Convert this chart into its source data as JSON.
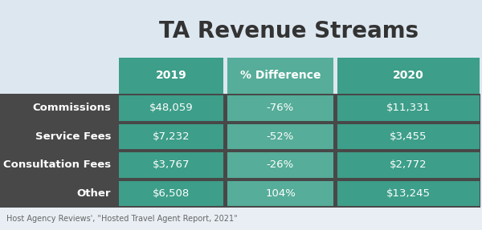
{
  "title": "TA Revenue Streams",
  "col_headers": [
    "2019",
    "% Difference",
    "2020"
  ],
  "row_labels": [
    "Commissions",
    "Service Fees",
    "Consultation Fees",
    "Other"
  ],
  "col1_values": [
    "$48,059",
    "$7,232",
    "$3,767",
    "$6,508"
  ],
  "col2_values": [
    "-76%",
    "-52%",
    "-26%",
    "104%"
  ],
  "col3_values": [
    "$11,331",
    "$3,455",
    "$2,772",
    "$13,245"
  ],
  "teal_color": "#3d9e89",
  "mid_teal_color": "#56ad99",
  "dark_color": "#484848",
  "top_bg_color": "#dde7f0",
  "footer_bg_color": "#e8eef4",
  "title_color": "#333333",
  "header_text_color": "#ffffff",
  "row_label_color": "#ffffff",
  "data_text_color": "#ffffff",
  "footer_text_color": "#666666",
  "footer_text": "Host Agency Reviews', \"Hosted Travel Agent Report, 2021\"",
  "title_fontsize": 20,
  "header_fontsize": 10,
  "cell_fontsize": 9.5,
  "row_label_fontsize": 9.5,
  "footer_fontsize": 7
}
